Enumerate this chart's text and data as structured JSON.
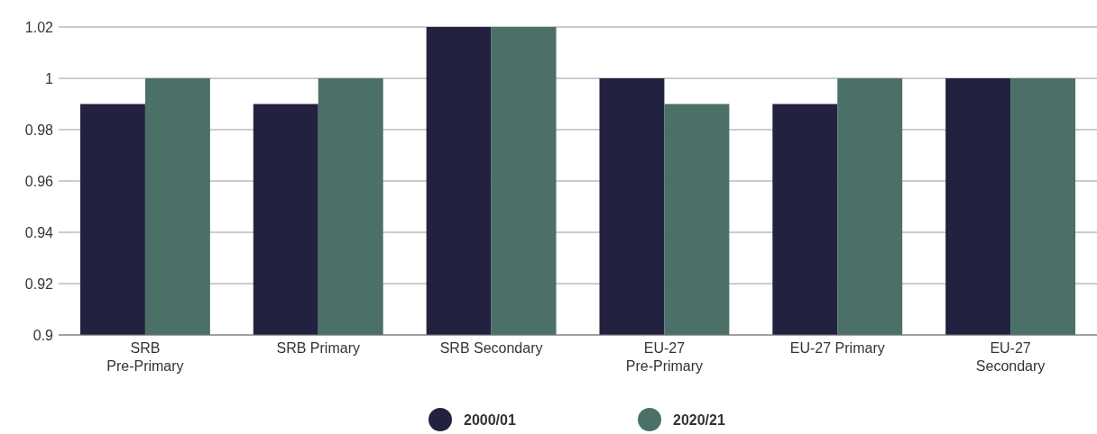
{
  "chart_data": {
    "type": "bar",
    "categories": [
      "SRB\nPre-Primary",
      "SRB Primary",
      "SRB Secondary",
      "EU-27\nPre-Primary",
      "EU-27 Primary",
      "EU-27\nSecondary"
    ],
    "series": [
      {
        "name": "2000/01",
        "color": "#222240",
        "values": [
          0.99,
          0.99,
          1.02,
          1,
          0.99,
          1
        ]
      },
      {
        "name": "2020/21",
        "color": "#4a7068",
        "values": [
          1,
          1,
          1.02,
          0.99,
          1,
          1
        ]
      }
    ],
    "ylim": [
      0.9,
      1.02
    ],
    "yticks": [
      0.9,
      0.92,
      0.94,
      0.96,
      0.98,
      1,
      1.02
    ],
    "grid": "y",
    "legend": "bottom"
  }
}
